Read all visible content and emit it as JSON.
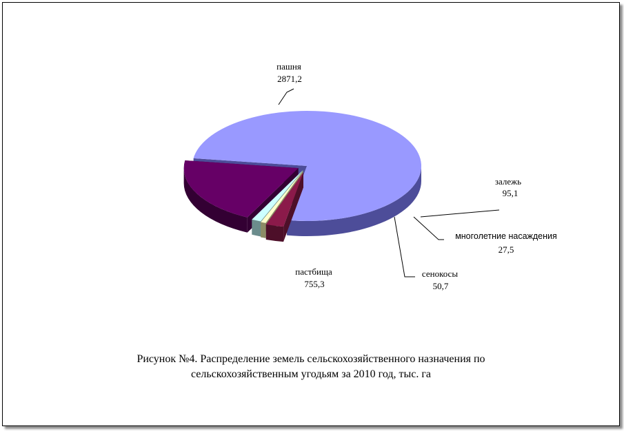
{
  "caption": {
    "line1": "Рисунок №4. Распределение земель сельскохозяйственного назначения по",
    "line2": "сельскохозяйственным угодьям за 2010 год, тыс. га"
  },
  "chart_data": {
    "type": "pie",
    "style": "3d-exploded",
    "categories": [
      "пашня",
      "залежь",
      "многолетние насаждения",
      "сенокосы",
      "пастбища"
    ],
    "values": [
      2871.2,
      95.1,
      27.5,
      50.7,
      755.3
    ],
    "value_labels": [
      "2871,2",
      "95,1",
      "27,5",
      "50,7",
      "755,3"
    ],
    "colors": [
      "#9999ff",
      "#8b1a4a",
      "#ffffcc",
      "#ccffff",
      "#660066"
    ],
    "side_colors": [
      "#4d4d99",
      "#4d0f29",
      "#8c8c66",
      "#6b8c8c",
      "#330033"
    ]
  }
}
